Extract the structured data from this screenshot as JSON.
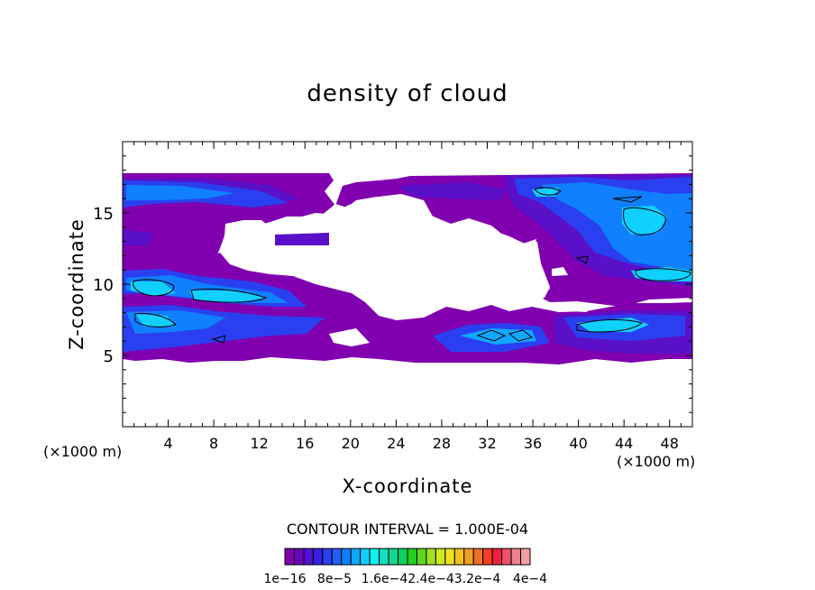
{
  "chart_data": {
    "type": "heatmap",
    "title": "density of cloud",
    "xlabel": "X-coordinate",
    "ylabel": "Z-coordinate",
    "x_unit_left": "(×1000 m)",
    "x_unit_right": "(×1000 m)",
    "xlim": [
      0,
      50
    ],
    "ylim": [
      0,
      20
    ],
    "x_ticks": [
      "4",
      "8",
      "12",
      "16",
      "20",
      "24",
      "28",
      "32",
      "36",
      "40",
      "44",
      "48"
    ],
    "y_ticks": [
      "5",
      "10",
      "15"
    ],
    "contour_interval_text": "CONTOUR INTERVAL = 1.000E-04",
    "colorbar_labels": [
      "1e-16",
      "8e-5",
      "1.6e-4",
      "2.4e-4",
      "3.2e-4",
      "4e-4"
    ],
    "colorbar_label_text": [
      "1e−16",
      "8e−5",
      "1.6e−42.4e−43.2e−4",
      "4e−4"
    ],
    "colorbar_colors": [
      "#8000b0",
      "#6a00c0",
      "#5010d0",
      "#3a20e0",
      "#2a40f0",
      "#2060ff",
      "#1080ff",
      "#10a8ff",
      "#10d0ff",
      "#10f0f0",
      "#10e0c0",
      "#10d890",
      "#10d060",
      "#20d020",
      "#60d820",
      "#a0e020",
      "#d0e820",
      "#f0e020",
      "#f0c020",
      "#f0a020",
      "#f07020",
      "#f04020",
      "#f02040",
      "#f05070",
      "#f08090",
      "#f0a0a0"
    ],
    "bands": [
      {
        "name": "upper",
        "z_range": [
          12.5,
          17.8
        ],
        "peak_x": [
          36,
          50
        ]
      },
      {
        "name": "lower",
        "z_range": [
          4.5,
          11.0
        ],
        "peak_x": [
          0,
          14
        ]
      }
    ]
  }
}
